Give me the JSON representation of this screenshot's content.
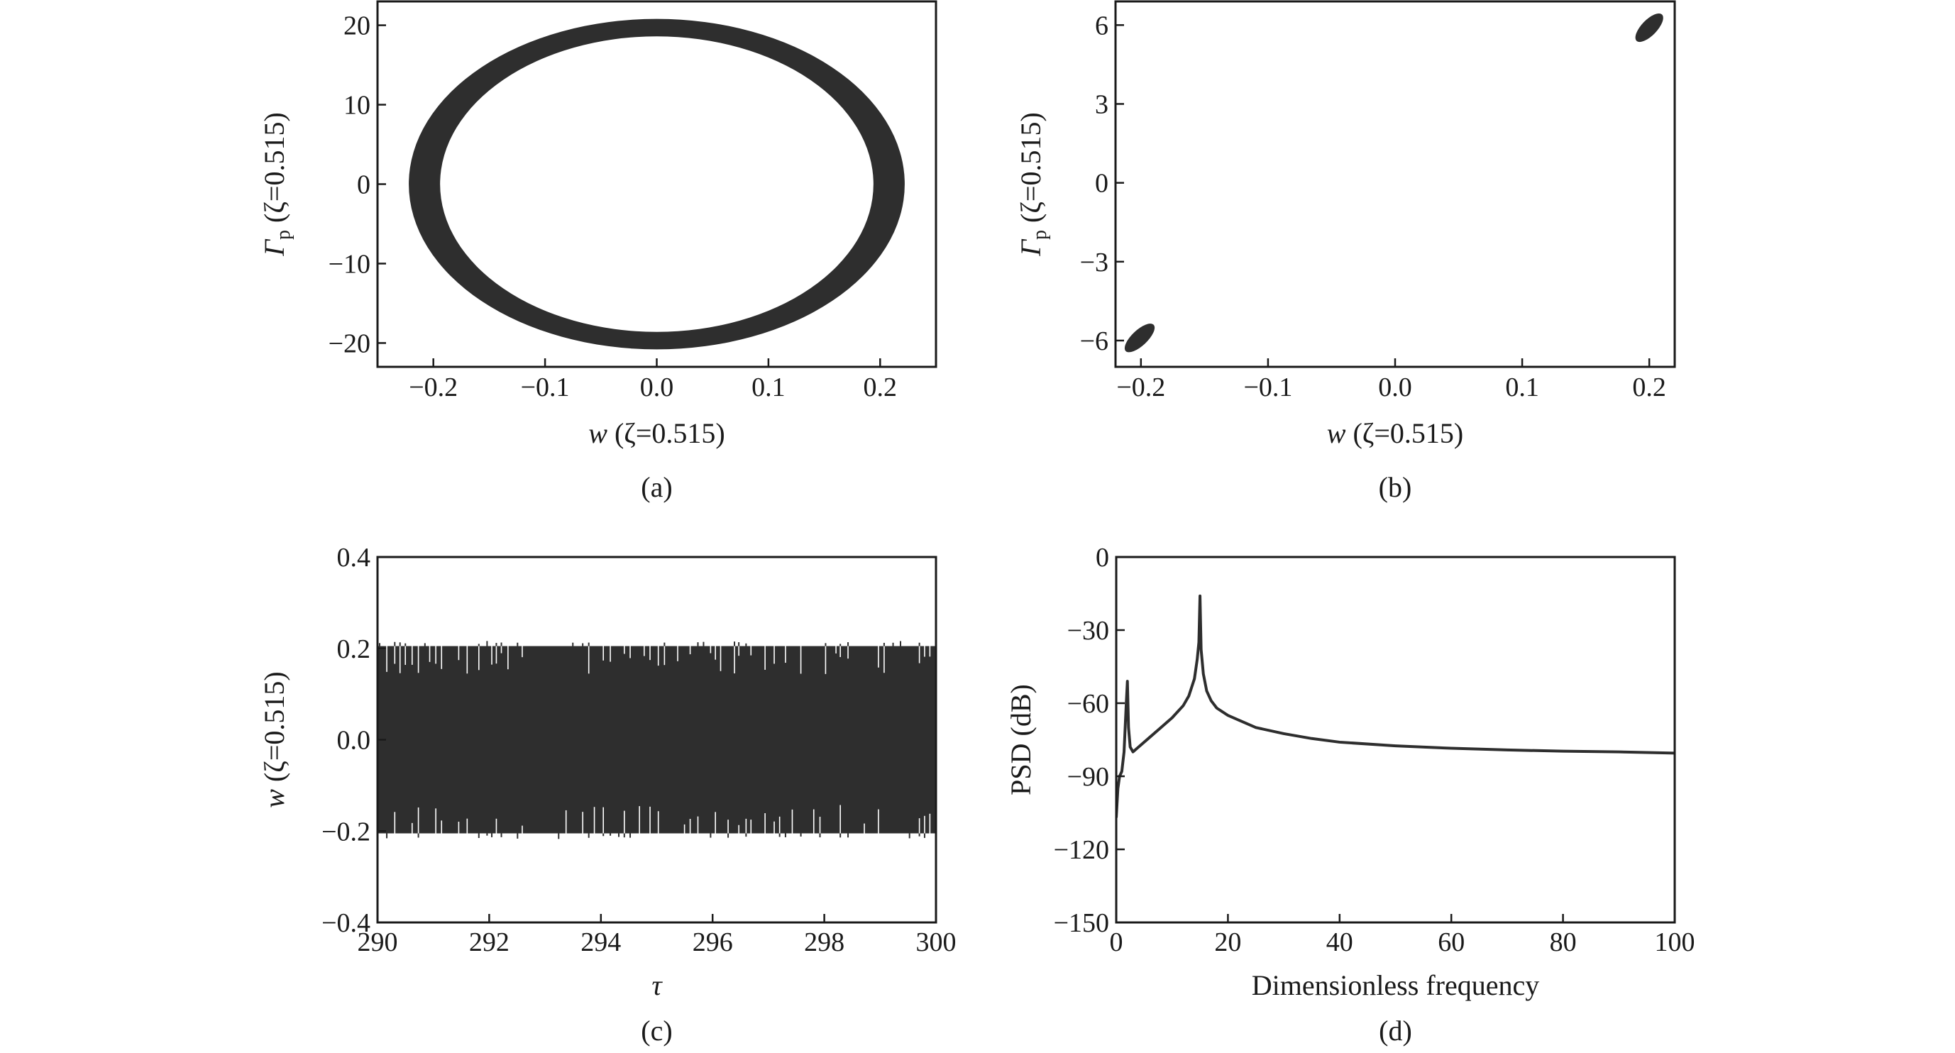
{
  "colors": {
    "ink": "#2e2e2e",
    "axis": "#1a1a1a",
    "background": "#ffffff"
  },
  "chart_data": [
    {
      "id": "a",
      "caption": "(a)",
      "type": "scatter",
      "xlabel": {
        "var": "w",
        "rest": " (ζ=0.515)"
      },
      "ylabel": {
        "var": "Γ",
        "sub": "p",
        "rest": " (ζ=0.515)"
      },
      "xlim": [
        -0.25,
        0.25
      ],
      "ylim": [
        -23,
        23
      ],
      "xticks": [
        -0.2,
        -0.1,
        0.0,
        0.1,
        0.2
      ],
      "xtick_labels": [
        "−0.2",
        "−0.1",
        "0.0",
        "0.1",
        "0.2"
      ],
      "yticks": [
        20,
        10,
        0,
        -10,
        -20
      ],
      "ytick_labels": [
        "20",
        "10",
        "0",
        "−10",
        "−20"
      ],
      "ring": {
        "center": [
          0.0,
          0.0
        ],
        "outer": [
          0.222,
          20.8
        ],
        "inner": [
          0.194,
          18.6
        ]
      }
    },
    {
      "id": "b",
      "caption": "(b)",
      "type": "scatter",
      "xlabel": {
        "var": "w",
        "rest": " (ζ=0.515)"
      },
      "ylabel": {
        "var": "Γ",
        "sub": "p",
        "rest": " (ζ=0.515)"
      },
      "xlim": [
        -0.22,
        0.22
      ],
      "ylim": [
        -7.0,
        6.9
      ],
      "xticks": [
        -0.2,
        -0.1,
        0.0,
        0.1,
        0.2
      ],
      "xtick_labels": [
        "−0.2",
        "−0.1",
        "0.0",
        "0.1",
        "0.2"
      ],
      "yticks": [
        6,
        3,
        0,
        -3,
        -6
      ],
      "ytick_labels": [
        "6",
        "3",
        "0",
        "−3",
        "−6"
      ],
      "clusters": [
        {
          "w": [
            0.19,
            0.21
          ],
          "gamma": [
            5.4,
            6.4
          ]
        },
        {
          "w": [
            -0.212,
            -0.19
          ],
          "gamma": [
            -6.4,
            -5.4
          ]
        }
      ]
    },
    {
      "id": "c",
      "caption": "(c)",
      "type": "line",
      "xlabel": {
        "var": "τ",
        "rest": ""
      },
      "ylabel": {
        "var": "w",
        "rest": " (ζ=0.515)"
      },
      "xlim": [
        290,
        300
      ],
      "ylim": [
        -0.4,
        0.4
      ],
      "xticks": [
        290,
        292,
        294,
        296,
        298,
        300
      ],
      "xtick_labels": [
        "290",
        "292",
        "294",
        "296",
        "298",
        "300"
      ],
      "yticks": [
        0.4,
        0.2,
        0.0,
        -0.2,
        -0.4
      ],
      "ytick_labels": [
        "0.4",
        "0.2",
        "0.0",
        "−0.2",
        "−0.4"
      ],
      "envelope": {
        "upper": 0.205,
        "lower": -0.205
      }
    },
    {
      "id": "d",
      "caption": "(d)",
      "type": "line",
      "xlabel": {
        "var": "",
        "rest": "Dimensionless frequency"
      },
      "ylabel": {
        "var": "",
        "rest": "PSD (dB)"
      },
      "xlim": [
        0,
        100
      ],
      "ylim": [
        -150,
        0
      ],
      "xticks": [
        0,
        20,
        40,
        60,
        80,
        100
      ],
      "xtick_labels": [
        "0",
        "20",
        "40",
        "60",
        "80",
        "100"
      ],
      "yticks": [
        0,
        -30,
        -60,
        -90,
        -120,
        -150
      ],
      "ytick_labels": [
        "0",
        "−30",
        "−60",
        "−90",
        "−120",
        "−150"
      ],
      "x": [
        0,
        0.3,
        0.6,
        1.0,
        1.4,
        1.8,
        2.0,
        2.2,
        2.5,
        3.0,
        4,
        6,
        8,
        10,
        12,
        13,
        14,
        14.5,
        14.8,
        15.0,
        15.2,
        15.6,
        16.2,
        17,
        18,
        20,
        22,
        25,
        30,
        35,
        40,
        50,
        60,
        70,
        80,
        90,
        100
      ],
      "y": [
        -107,
        -95,
        -90,
        -88,
        -80,
        -60,
        -51,
        -70,
        -78,
        -80,
        -78,
        -74,
        -70,
        -66,
        -61,
        -57,
        -50,
        -42,
        -35,
        -16,
        -38,
        -48,
        -55,
        -59,
        -62,
        -65,
        -67,
        -70,
        -72.5,
        -74.5,
        -76,
        -77.5,
        -78.5,
        -79.2,
        -79.7,
        -80,
        -80.5
      ]
    }
  ]
}
